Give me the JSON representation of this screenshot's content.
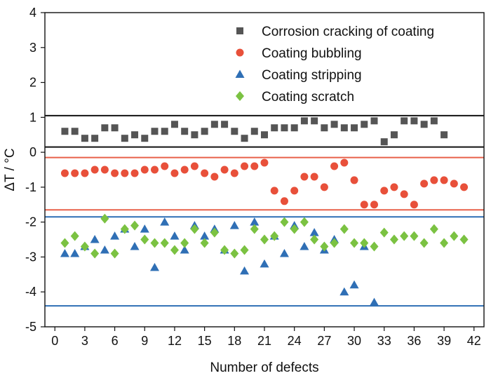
{
  "chart_data": {
    "type": "scatter",
    "xlabel": "Number of defects",
    "ylabel": "ΔT / °C",
    "xlim": [
      -1,
      43
    ],
    "ylim": [
      -5,
      4
    ],
    "xticks": [
      "0",
      "3",
      "6",
      "9",
      "12",
      "15",
      "18",
      "21",
      "24",
      "27",
      "30",
      "33",
      "36",
      "39",
      "42"
    ],
    "yticks": [
      "-5",
      "-4",
      "-3",
      "-2",
      "-1",
      "0",
      "1",
      "2",
      "3",
      "4"
    ],
    "legend_position": "top-right",
    "series": [
      {
        "name": "Corrosion cracking of coating",
        "marker": "square",
        "color": "#555555",
        "points": [
          [
            1,
            0.6
          ],
          [
            2,
            0.6
          ],
          [
            3,
            0.4
          ],
          [
            4,
            0.4
          ],
          [
            5,
            0.7
          ],
          [
            6,
            0.7
          ],
          [
            7,
            0.4
          ],
          [
            8,
            0.5
          ],
          [
            9,
            0.4
          ],
          [
            10,
            0.6
          ],
          [
            11,
            0.6
          ],
          [
            12,
            0.8
          ],
          [
            13,
            0.6
          ],
          [
            14,
            0.5
          ],
          [
            15,
            0.6
          ],
          [
            16,
            0.8
          ],
          [
            17,
            0.8
          ],
          [
            18,
            0.6
          ],
          [
            19,
            0.4
          ],
          [
            20,
            0.6
          ],
          [
            21,
            0.5
          ],
          [
            22,
            0.7
          ],
          [
            23,
            0.7
          ],
          [
            24,
            0.7
          ],
          [
            25,
            0.9
          ],
          [
            26,
            0.9
          ],
          [
            27,
            0.7
          ],
          [
            28,
            0.8
          ],
          [
            29,
            0.7
          ],
          [
            30,
            0.7
          ],
          [
            31,
            0.8
          ],
          [
            32,
            0.9
          ],
          [
            33,
            0.3
          ],
          [
            34,
            0.5
          ],
          [
            35,
            0.9
          ],
          [
            36,
            0.9
          ],
          [
            37,
            0.8
          ],
          [
            38,
            0.9
          ],
          [
            39,
            0.5
          ]
        ]
      },
      {
        "name": "Coating bubbling",
        "marker": "circle",
        "color": "#e8503a",
        "points": [
          [
            1,
            -0.6
          ],
          [
            2,
            -0.6
          ],
          [
            3,
            -0.6
          ],
          [
            4,
            -0.5
          ],
          [
            5,
            -0.5
          ],
          [
            6,
            -0.6
          ],
          [
            7,
            -0.6
          ],
          [
            8,
            -0.6
          ],
          [
            9,
            -0.5
          ],
          [
            10,
            -0.5
          ],
          [
            11,
            -0.4
          ],
          [
            12,
            -0.6
          ],
          [
            13,
            -0.5
          ],
          [
            14,
            -0.4
          ],
          [
            15,
            -0.6
          ],
          [
            16,
            -0.7
          ],
          [
            17,
            -0.5
          ],
          [
            18,
            -0.6
          ],
          [
            19,
            -0.4
          ],
          [
            20,
            -0.4
          ],
          [
            21,
            -0.3
          ],
          [
            22,
            -1.1
          ],
          [
            23,
            -1.4
          ],
          [
            24,
            -1.1
          ],
          [
            25,
            -0.7
          ],
          [
            26,
            -0.7
          ],
          [
            27,
            -1.0
          ],
          [
            28,
            -0.4
          ],
          [
            29,
            -0.3
          ],
          [
            30,
            -0.8
          ],
          [
            31,
            -1.5
          ],
          [
            32,
            -1.5
          ],
          [
            33,
            -1.1
          ],
          [
            34,
            -1.0
          ],
          [
            35,
            -1.2
          ],
          [
            36,
            -1.5
          ],
          [
            37,
            -0.9
          ],
          [
            38,
            -0.8
          ],
          [
            39,
            -0.8
          ],
          [
            40,
            -0.9
          ],
          [
            41,
            -1.0
          ]
        ]
      },
      {
        "name": "Coating stripping",
        "marker": "triangle",
        "color": "#2f6fb5",
        "points": [
          [
            1,
            -2.9
          ],
          [
            2,
            -2.9
          ],
          [
            3,
            -2.7
          ],
          [
            4,
            -2.5
          ],
          [
            5,
            -2.8
          ],
          [
            6,
            -2.4
          ],
          [
            7,
            -2.2
          ],
          [
            8,
            -2.7
          ],
          [
            9,
            -2.2
          ],
          [
            10,
            -3.3
          ],
          [
            11,
            -2.0
          ],
          [
            12,
            -2.4
          ],
          [
            13,
            -2.8
          ],
          [
            14,
            -2.1
          ],
          [
            15,
            -2.4
          ],
          [
            16,
            -2.2
          ],
          [
            17,
            -2.8
          ],
          [
            18,
            -2.1
          ],
          [
            19,
            -3.4
          ],
          [
            20,
            -2.0
          ],
          [
            21,
            -3.2
          ],
          [
            22,
            -2.4
          ],
          [
            23,
            -2.9
          ],
          [
            24,
            -2.1
          ],
          [
            25,
            -2.7
          ],
          [
            26,
            -2.3
          ],
          [
            27,
            -2.8
          ],
          [
            28,
            -2.5
          ],
          [
            29,
            -4.0
          ],
          [
            30,
            -3.8
          ],
          [
            31,
            -2.7
          ],
          [
            32,
            -4.3
          ]
        ]
      },
      {
        "name": "Coating scratch",
        "marker": "diamond",
        "color": "#7bc242",
        "points": [
          [
            1,
            -2.6
          ],
          [
            2,
            -2.4
          ],
          [
            3,
            -2.7
          ],
          [
            4,
            -2.9
          ],
          [
            5,
            -1.9
          ],
          [
            6,
            -2.9
          ],
          [
            7,
            -2.2
          ],
          [
            8,
            -2.1
          ],
          [
            9,
            -2.5
          ],
          [
            10,
            -2.6
          ],
          [
            11,
            -2.6
          ],
          [
            12,
            -2.8
          ],
          [
            13,
            -2.6
          ],
          [
            14,
            -2.2
          ],
          [
            15,
            -2.6
          ],
          [
            16,
            -2.3
          ],
          [
            17,
            -2.8
          ],
          [
            18,
            -2.9
          ],
          [
            19,
            -2.8
          ],
          [
            20,
            -2.2
          ],
          [
            21,
            -2.5
          ],
          [
            22,
            -2.4
          ],
          [
            23,
            -2.0
          ],
          [
            24,
            -2.2
          ],
          [
            25,
            -2.0
          ],
          [
            26,
            -2.5
          ],
          [
            27,
            -2.7
          ],
          [
            28,
            -2.6
          ],
          [
            29,
            -2.2
          ],
          [
            30,
            -2.6
          ],
          [
            31,
            -2.6
          ],
          [
            32,
            -2.7
          ],
          [
            33,
            -2.3
          ],
          [
            34,
            -2.5
          ],
          [
            35,
            -2.4
          ],
          [
            36,
            -2.4
          ],
          [
            37,
            -2.6
          ],
          [
            38,
            -2.2
          ],
          [
            39,
            -2.6
          ],
          [
            40,
            -2.4
          ],
          [
            41,
            -2.5
          ]
        ]
      }
    ],
    "threshold_lines": [
      {
        "y": 1.05,
        "color": "#111111"
      },
      {
        "y": 0.15,
        "color": "#111111"
      },
      {
        "y": -0.15,
        "color": "#e8604a"
      },
      {
        "y": -1.65,
        "color": "#e8604a"
      },
      {
        "y": -1.85,
        "color": "#2f6fb5"
      },
      {
        "y": -4.4,
        "color": "#2f6fb5"
      }
    ]
  }
}
